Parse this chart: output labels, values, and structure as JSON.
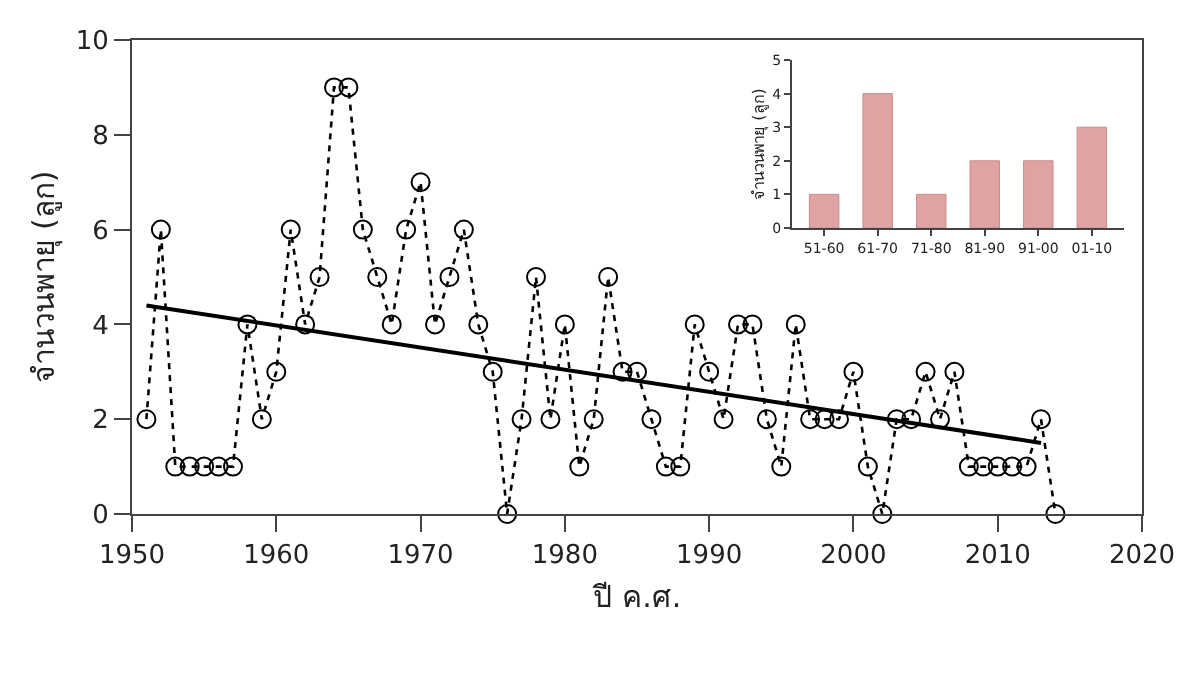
{
  "chart_data": [
    {
      "type": "line",
      "xlabel": "ปี ค.ศ.",
      "ylabel": "จำนวนพายุ (ลูก)",
      "xlim": [
        1950,
        2020
      ],
      "xticks": [
        1950,
        1960,
        1970,
        1980,
        1990,
        2000,
        2010,
        2020
      ],
      "ylim": [
        0,
        10
      ],
      "yticks": [
        0,
        2,
        4,
        6,
        8,
        10
      ],
      "series": [
        {
          "color": "#000000",
          "marker": "circle",
          "line_style": "dotted",
          "x": [
            1951,
            1952,
            1953,
            1954,
            1955,
            1956,
            1957,
            1958,
            1959,
            1960,
            1961,
            1962,
            1963,
            1964,
            1965,
            1966,
            1967,
            1968,
            1969,
            1970,
            1971,
            1972,
            1973,
            1974,
            1975,
            1976,
            1977,
            1978,
            1979,
            1980,
            1981,
            1982,
            1983,
            1984,
            1985,
            1986,
            1987,
            1988,
            1989,
            1990,
            1991,
            1992,
            1993,
            1994,
            1995,
            1996,
            1997,
            1998,
            1999,
            2000,
            2001,
            2002,
            2003,
            2004,
            2005,
            2006,
            2007,
            2008,
            2009,
            2010,
            2011,
            2012,
            2013,
            2014
          ],
          "values": [
            2,
            6,
            1,
            1,
            1,
            1,
            1,
            4,
            2,
            3,
            6,
            4,
            5,
            9,
            9,
            6,
            5,
            4,
            6,
            7,
            4,
            5,
            6,
            4,
            3,
            0,
            2,
            5,
            2,
            4,
            1,
            2,
            5,
            3,
            3,
            2,
            1,
            1,
            4,
            3,
            2,
            4,
            4,
            2,
            1,
            4,
            2,
            2,
            2,
            3,
            1,
            0,
            2,
            2,
            3,
            2,
            3,
            1,
            1,
            1,
            1,
            1,
            2,
            0
          ]
        },
        {
          "color": "#000000",
          "marker": "none",
          "line_style": "solid",
          "x": [
            1951,
            2013
          ],
          "values": [
            4.4,
            1.5
          ]
        }
      ]
    },
    {
      "type": "bar",
      "ylabel": "จำนวนพายุ (ลูก)",
      "categories": [
        "51-60",
        "61-70",
        "71-80",
        "81-90",
        "91-00",
        "01-10"
      ],
      "values": [
        1,
        4,
        1,
        2,
        2,
        3
      ],
      "color": "#e0a3a3",
      "ylim": [
        0,
        5
      ],
      "yticks": [
        0,
        1,
        2,
        3,
        4,
        5
      ]
    }
  ]
}
